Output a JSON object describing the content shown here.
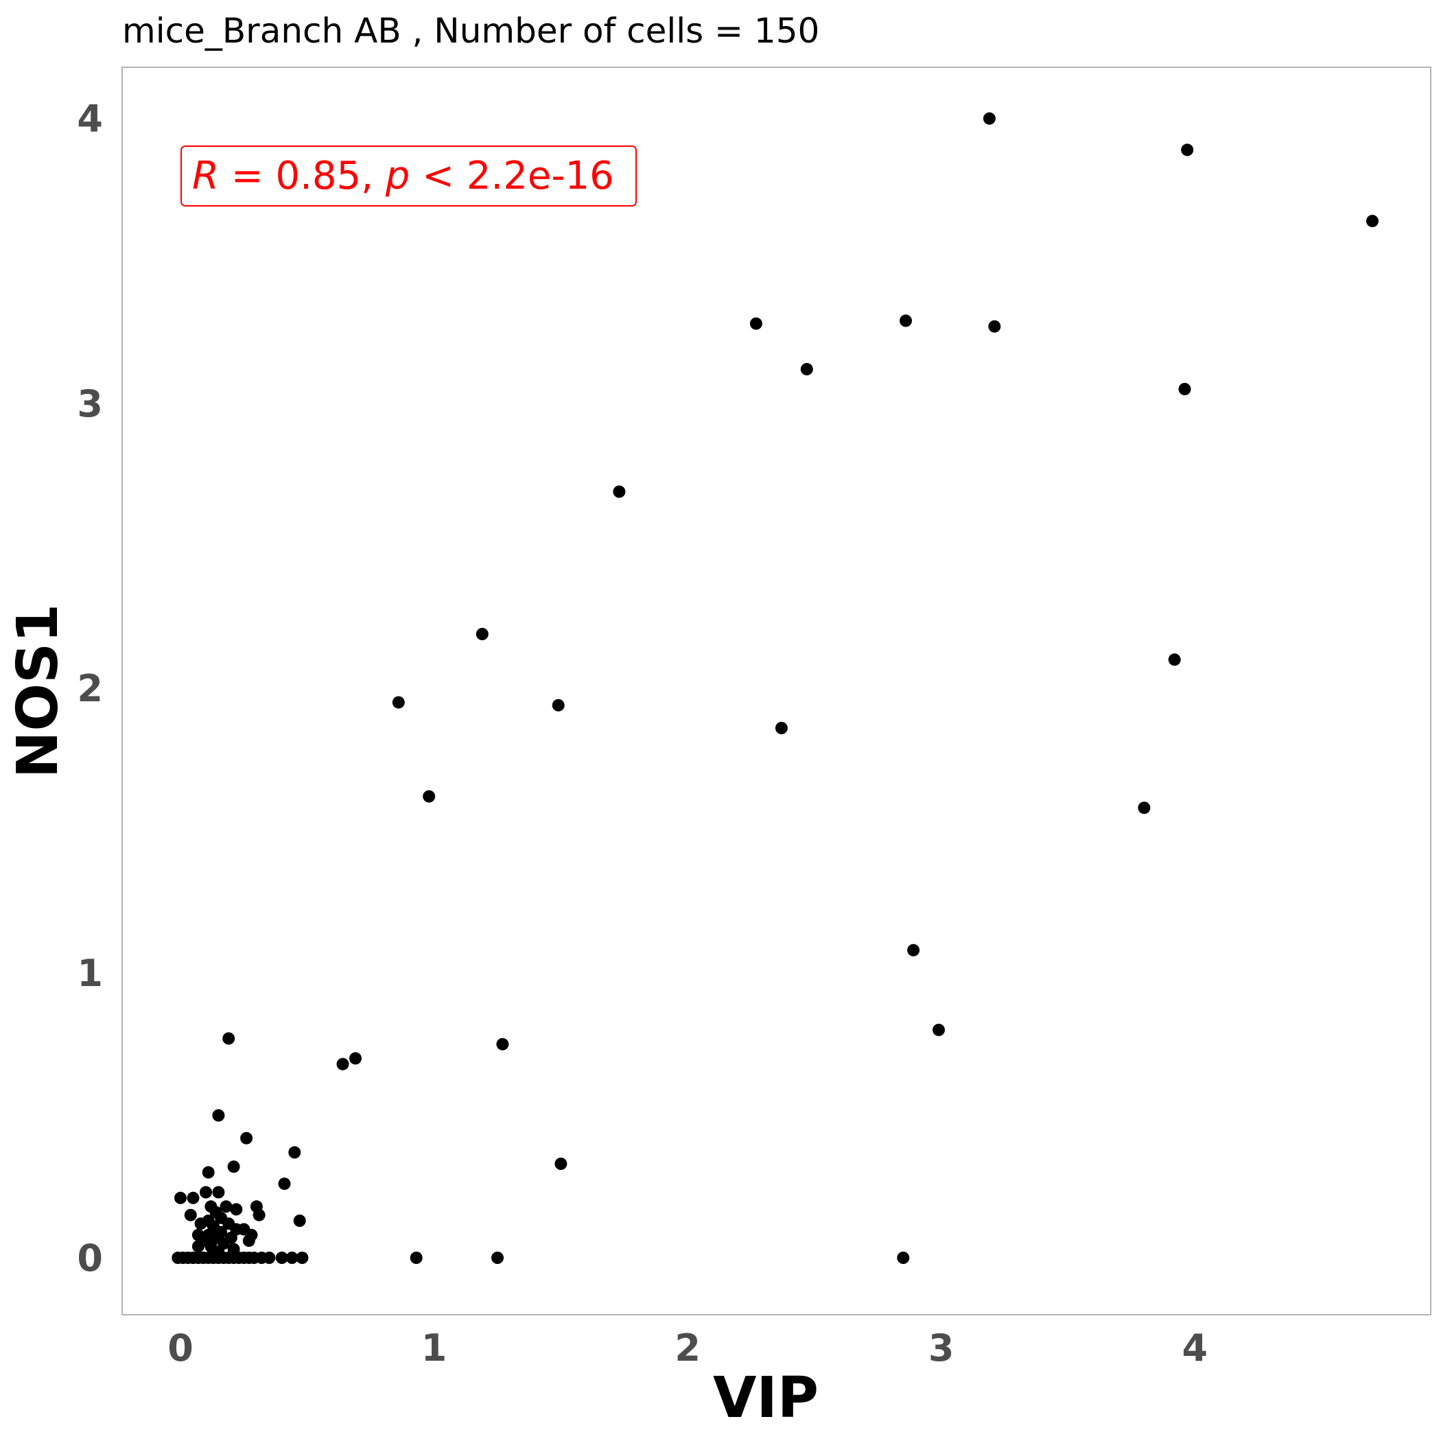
{
  "chart_data": {
    "type": "scatter",
    "title": "mice_Branch AB , Number of cells =  150",
    "xlabel": "VIP",
    "ylabel": "NOS1",
    "xlim": [
      -0.23,
      4.93
    ],
    "ylim": [
      -0.2,
      4.18
    ],
    "x_ticks": [
      "0",
      "1",
      "2",
      "3",
      "4"
    ],
    "y_ticks": [
      "0",
      "1",
      "2",
      "3",
      "4"
    ],
    "grid": false,
    "point_color": "#000000",
    "panel_border_color": "#b3b3b3",
    "annotation": {
      "r_symbol": "R",
      "r_text": " = 0.85, ",
      "p_symbol": "p",
      "p_text": " < 2.2e-16",
      "color": "#ff0000",
      "x": 0.04,
      "y": 3.82
    },
    "points": [
      [
        3.19,
        4.0
      ],
      [
        3.97,
        3.89
      ],
      [
        4.7,
        3.64
      ],
      [
        2.27,
        3.28
      ],
      [
        2.86,
        3.29
      ],
      [
        3.21,
        3.27
      ],
      [
        2.47,
        3.12
      ],
      [
        3.96,
        3.05
      ],
      [
        1.73,
        2.69
      ],
      [
        1.19,
        2.19
      ],
      [
        3.92,
        2.1
      ],
      [
        0.86,
        1.95
      ],
      [
        1.49,
        1.94
      ],
      [
        2.37,
        1.86
      ],
      [
        0.98,
        1.62
      ],
      [
        3.8,
        1.58
      ],
      [
        2.89,
        1.08
      ],
      [
        2.99,
        0.8
      ],
      [
        0.19,
        0.77
      ],
      [
        1.27,
        0.75
      ],
      [
        0.69,
        0.7
      ],
      [
        0.64,
        0.68
      ],
      [
        0.15,
        0.5
      ],
      [
        0.26,
        0.42
      ],
      [
        0.45,
        0.37
      ],
      [
        1.5,
        0.33
      ],
      [
        0.21,
        0.32
      ],
      [
        0.11,
        0.3
      ],
      [
        0.41,
        0.26
      ],
      [
        0.0,
        0.21
      ],
      [
        0.05,
        0.21
      ],
      [
        0.1,
        0.23
      ],
      [
        0.15,
        0.23
      ],
      [
        0.18,
        0.18
      ],
      [
        0.12,
        0.18
      ],
      [
        0.3,
        0.18
      ],
      [
        0.22,
        0.17
      ],
      [
        0.14,
        0.16
      ],
      [
        0.04,
        0.15
      ],
      [
        0.31,
        0.15
      ],
      [
        0.16,
        0.14
      ],
      [
        0.11,
        0.13
      ],
      [
        0.47,
        0.13
      ],
      [
        0.08,
        0.12
      ],
      [
        0.19,
        0.12
      ],
      [
        0.13,
        0.11
      ],
      [
        0.22,
        0.1
      ],
      [
        0.25,
        0.1
      ],
      [
        0.16,
        0.09
      ],
      [
        0.11,
        0.08
      ],
      [
        0.07,
        0.08
      ],
      [
        0.28,
        0.08
      ],
      [
        0.2,
        0.07
      ],
      [
        0.14,
        0.07
      ],
      [
        0.09,
        0.06
      ],
      [
        0.17,
        0.05
      ],
      [
        0.27,
        0.06
      ],
      [
        0.07,
        0.04
      ],
      [
        0.12,
        0.04
      ],
      [
        0.21,
        0.03
      ],
      [
        0.15,
        0.02
      ],
      [
        -0.01,
        0.0
      ],
      [
        0.01,
        0.0
      ],
      [
        0.03,
        0.0
      ],
      [
        0.05,
        0.0
      ],
      [
        0.07,
        0.0
      ],
      [
        0.09,
        0.0
      ],
      [
        0.11,
        0.0
      ],
      [
        0.13,
        0.0
      ],
      [
        0.15,
        0.0
      ],
      [
        0.17,
        0.0
      ],
      [
        0.19,
        0.0
      ],
      [
        0.21,
        0.0
      ],
      [
        0.23,
        0.0
      ],
      [
        0.25,
        0.0
      ],
      [
        0.27,
        0.0
      ],
      [
        0.29,
        0.0
      ],
      [
        0.32,
        0.0
      ],
      [
        0.35,
        0.0
      ],
      [
        0.4,
        0.0
      ],
      [
        0.44,
        0.0
      ],
      [
        0.48,
        0.0
      ],
      [
        0.93,
        0.0
      ],
      [
        1.25,
        0.0
      ],
      [
        2.85,
        0.0
      ]
    ]
  }
}
